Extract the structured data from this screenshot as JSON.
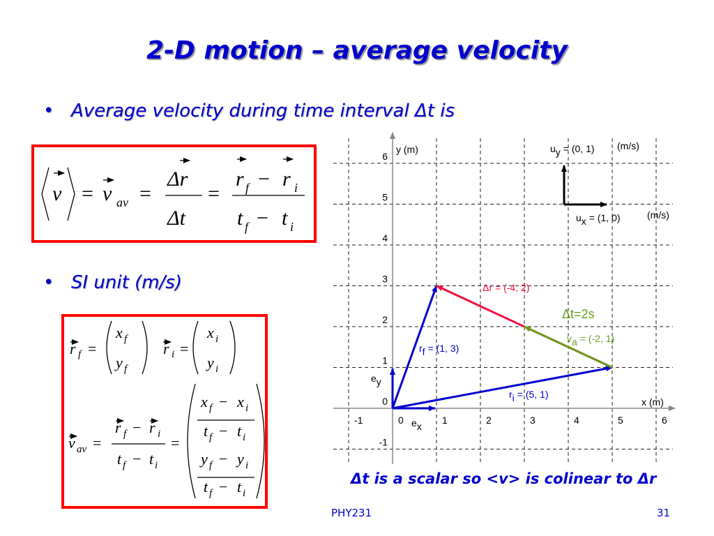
{
  "title": "2-D motion – average velocity",
  "bullets": [
    "Average velocity during time interval Δt is",
    "SI unit (m/s)"
  ],
  "definition_formula": [
    "v",
    "=",
    "v",
    "av",
    "=",
    "Δr",
    "Δt",
    "=",
    "r",
    "f",
    "−",
    "r",
    "i",
    "t",
    "f",
    "−",
    "t",
    "i"
  ],
  "component_formulas": [
    [
      "r",
      "f",
      "=",
      "x",
      "f",
      "y",
      "f",
      "r",
      "i",
      "=",
      "x",
      "i",
      "y",
      "i"
    ],
    [
      "v",
      "av",
      "=",
      "r",
      "f",
      "−",
      "r",
      "i",
      "t",
      "f",
      "−",
      "t",
      "i",
      "=",
      "x",
      "f",
      "−",
      "x",
      "i",
      "t",
      "f",
      "−",
      "t",
      "i",
      "y",
      "f",
      "−",
      "y",
      "i",
      "t",
      "f",
      "−",
      "t",
      "i"
    ]
  ],
  "graph": {
    "x_axis_label": "x (m)",
    "y_axis_label": "y (m)",
    "xticks": [
      -1,
      0,
      1,
      2,
      3,
      4,
      5,
      6
    ],
    "yticks": [
      -1,
      0,
      1,
      2,
      3,
      4,
      5,
      6
    ],
    "basis_x": [
      "e",
      "x"
    ],
    "basis_y": [
      "e",
      "y"
    ],
    "unit_x": {
      "symbol": "u",
      "subscript": "x",
      "value_text": "= (1, 0)",
      "unit": "(m/s)"
    },
    "unit_y": {
      "symbol": "u",
      "subscript": "y",
      "value_text": "= (0, 1)",
      "unit": "(m/s)"
    },
    "vectors": [
      {
        "symbol": "r",
        "subscript": "i",
        "value_text": "= (5, 1)",
        "components": [
          5,
          1
        ],
        "color": "#0000cc"
      },
      {
        "symbol": "r",
        "subscript": "f",
        "value_text": "= (1, 3)",
        "components": [
          1,
          3
        ],
        "color": "#0000cc"
      },
      {
        "symbol": "Δr",
        "value_text": "= (-4, 2)",
        "components": [
          -4,
          2
        ],
        "color": "#ee1144"
      },
      {
        "symbol": "v",
        "subscript": "a",
        "value_text": "= (-2, 1)",
        "components": [
          -2,
          1
        ],
        "color": "#6b9a1f"
      }
    ],
    "time_interval": "Δt=2s"
  },
  "footer": {
    "note": "Δt is a scalar so <v> is colinear to Δr",
    "course": "PHY231",
    "page": "31"
  }
}
